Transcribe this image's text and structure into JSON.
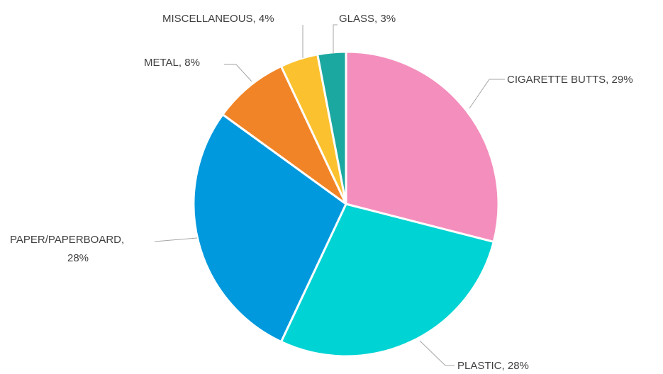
{
  "chart_data": {
    "type": "pie",
    "title": "",
    "slices": [
      {
        "label": "CIGARETTE BUTTS",
        "value": 29,
        "value_label": "29%",
        "color": "#f48fbd"
      },
      {
        "label": "PLASTIC",
        "value": 28,
        "value_label": "28%",
        "color": "#00d3d3"
      },
      {
        "label": "PAPER/PAPERBOARD",
        "value": 28,
        "value_label": "28%",
        "color": "#0099dd"
      },
      {
        "label": "METAL",
        "value": 8,
        "value_label": "8%",
        "color": "#f18426"
      },
      {
        "label": "MISCELLANEOUS",
        "value": 4,
        "value_label": "4%",
        "color": "#fbc12e"
      },
      {
        "label": "GLASS",
        "value": 3,
        "value_label": "3%",
        "color": "#1ba8a0"
      }
    ],
    "data_labels": [
      "CIGARETTE BUTTS, 29%",
      "PLASTIC, 28%",
      "PAPER/PAPERBOARD,",
      "28%",
      "METAL, 8%",
      "MISCELLANEOUS, 4%",
      "GLASS, 3%"
    ],
    "start": "12 o'clock",
    "direction": "clockwise",
    "legend": "none"
  }
}
